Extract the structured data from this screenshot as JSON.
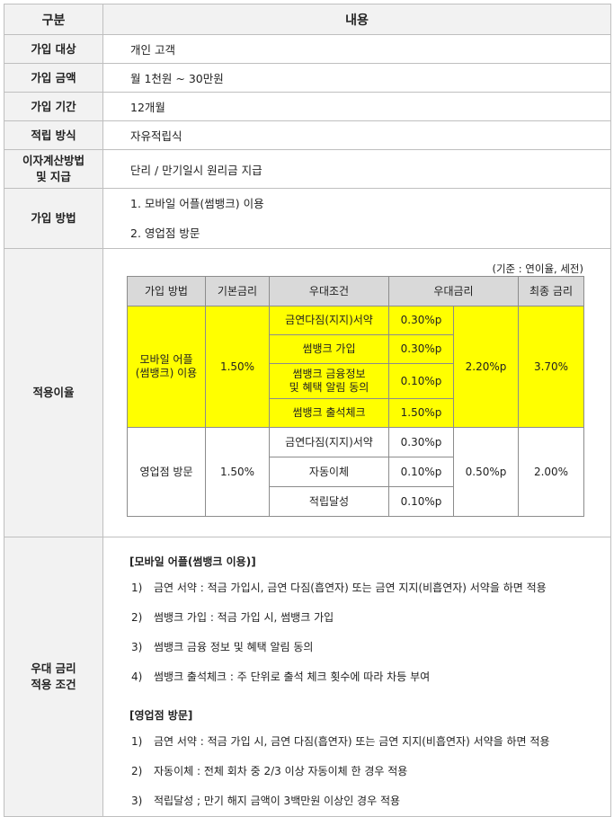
{
  "header": {
    "col1": "구분",
    "col2": "내용"
  },
  "rows": {
    "target": {
      "label": "가입 대상",
      "value": "개인 고객"
    },
    "amount": {
      "label": "가입 금액",
      "value": "월 1천원 ~ 30만원"
    },
    "period": {
      "label": "가입 기간",
      "value": "12개월"
    },
    "method": {
      "label": "적립 방식",
      "value": "자유적립식"
    },
    "interest": {
      "label_line1": "이자계산방법",
      "label_line2": "및 지급",
      "value": "단리 / 만기일시 원리금 지급"
    },
    "join": {
      "label": "가입 방법",
      "items": [
        "1.  모바일 어플(썸뱅크) 이용",
        "2.  영업점 방문"
      ]
    }
  },
  "rate": {
    "label": "적용이율",
    "basis": "(기준 : 연이율, 세전)",
    "headers": [
      "가입 방법",
      "기본금리",
      "우대조건",
      "우대금리",
      "최종 금리"
    ],
    "mobile": {
      "channel_line1": "모바일 어플",
      "channel_line2": "(썸뱅크) 이용",
      "base": "1.50%",
      "conditions": [
        {
          "name": "금연다짐(지지)서약",
          "rate": "0.30%p"
        },
        {
          "name": "썸뱅크 가입",
          "rate": "0.30%p"
        },
        {
          "name_line1": "썸뱅크 금융정보",
          "name_line2": "및 혜택 알림 동의",
          "rate": "0.10%p"
        },
        {
          "name": "썸뱅크 출석체크",
          "rate": "1.50%p"
        }
      ],
      "total_pref": "2.20%p",
      "final": "3.70%"
    },
    "branch": {
      "channel": "영업점 방문",
      "base": "1.50%",
      "conditions": [
        {
          "name": "금연다짐(지지)서약",
          "rate": "0.30%p"
        },
        {
          "name": "자동이체",
          "rate": "0.10%p"
        },
        {
          "name": "적립달성",
          "rate": "0.10%p"
        }
      ],
      "total_pref": "0.50%p",
      "final": "2.00%"
    },
    "colors": {
      "highlight": "#ffff00",
      "header_bg": "#d9d9d9",
      "label_bg": "#f2f2f2"
    }
  },
  "preference": {
    "label_line1": "우대 금리",
    "label_line2": "적용 조건",
    "mobile_title": "[모바일 어플(썸뱅크 이용)]",
    "mobile_items": [
      {
        "num": "1)",
        "text": "금연 서약 : 적금 가입시, 금연 다짐(흡연자) 또는 금연 지지(비흡연자) 서약을 하면 적용"
      },
      {
        "num": "2)",
        "text": "썸뱅크 가입 : 적금 가입 시, 썸뱅크 가입"
      },
      {
        "num": "3)",
        "text": "썸뱅크 금융 정보 및 혜택 알림 동의"
      },
      {
        "num": "4)",
        "text": "썸뱅크 출석체크 : 주 단위로 출석 체크 횟수에 따라 차등 부여"
      }
    ],
    "branch_title": "[영업점 방문]",
    "branch_items": [
      {
        "num": "1)",
        "text": "금연 서약 : 적금 가입 시, 금연 다짐(흡연자) 또는 금연 지지(비흡연자) 서약을 하면 적용"
      },
      {
        "num": "2)",
        "text": "자동이체 : 전체 회차 중 2/3 이상 자동이체 한 경우 적용"
      },
      {
        "num": "3)",
        "text": "적립달성 ; 만기 해지 금액이 3백만원 이상인 경우 적용"
      }
    ]
  }
}
